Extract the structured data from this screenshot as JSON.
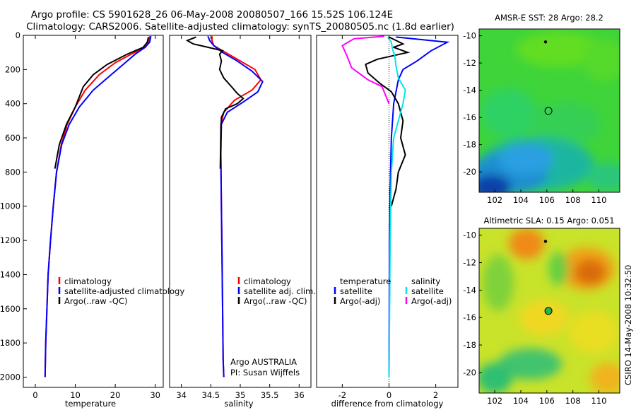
{
  "header": {
    "line1": "Argo profile: CS 5901628_26 06-May-2008 20080507_166 15.52S 106.124E",
    "line2": "Climatology: CARS2006. Satellite-adjusted climatology: synTS_20080505.nc (1.8d earlier)"
  },
  "footer_stamp": "CSIRO 14-May-2008 10:32:50",
  "colors": {
    "clim": "#ff0000",
    "sat": "#0000ff",
    "argo": "#000000",
    "sal_sat": "#00e5ee",
    "sal_argo": "#ff00ff"
  },
  "chart_data": [
    {
      "type": "line",
      "id": "temperature",
      "xlabel": "temperature",
      "xlim": [
        -3,
        32
      ],
      "ylim": [
        0,
        2060
      ],
      "xticks": [
        "0",
        "10",
        "20",
        "30"
      ],
      "yticks": [
        "0",
        "200",
        "400",
        "600",
        "800",
        "1000",
        "1200",
        "1400",
        "1600",
        "1800",
        "2000"
      ],
      "legend": [
        "climatology",
        "satellite-adjusted climatology",
        "Argo(..raw -QC)"
      ],
      "series": [
        {
          "name": "climatology",
          "color": "#ff0000",
          "x": [
            28.7,
            28.4,
            27.5,
            24,
            20,
            16,
            12.5,
            10,
            8,
            6.5,
            5.3,
            4.5,
            3.8,
            3.2,
            2.9,
            2.6,
            2.45
          ],
          "y": [
            5,
            40,
            70,
            110,
            160,
            230,
            320,
            420,
            520,
            640,
            800,
            1000,
            1200,
            1400,
            1600,
            1800,
            2000
          ]
        },
        {
          "name": "satellite-adjusted climatology",
          "color": "#0000ff",
          "x": [
            28.9,
            28.6,
            27.5,
            25,
            22,
            18.5,
            14.5,
            11,
            8.5,
            6.6,
            5.3,
            4.5,
            3.8,
            3.2,
            2.9,
            2.6,
            2.45
          ],
          "y": [
            5,
            40,
            70,
            110,
            170,
            240,
            320,
            420,
            520,
            640,
            800,
            1000,
            1200,
            1400,
            1600,
            1800,
            2000
          ]
        },
        {
          "name": "Argo(..raw -QC)",
          "color": "#000000",
          "x": [
            28.3,
            28,
            27,
            23,
            18,
            14.5,
            12,
            10,
            7.8,
            6,
            4.9
          ],
          "y": [
            10,
            40,
            70,
            110,
            170,
            230,
            300,
            420,
            520,
            640,
            780
          ]
        }
      ]
    },
    {
      "type": "line",
      "id": "salinity",
      "xlabel": "salinity",
      "xlim": [
        33.8,
        36.2
      ],
      "ylim": [
        0,
        2060
      ],
      "xticks": [
        "34",
        "34.5",
        "35",
        "35.5",
        "36"
      ],
      "legend": [
        "climatology",
        "satellite adj. clim.",
        "Argo(..raw -QC)"
      ],
      "annotation": [
        "Argo AUSTRALIA",
        "PI: Susan Wijffels"
      ],
      "series": [
        {
          "name": "climatology",
          "color": "#ff0000",
          "x": [
            34.52,
            34.52,
            34.55,
            34.75,
            35,
            35.25,
            35.35,
            35.2,
            34.9,
            34.72,
            34.67,
            34.67,
            34.68,
            34.69,
            34.7,
            34.71,
            34.72
          ],
          "y": [
            5,
            30,
            60,
            100,
            150,
            200,
            260,
            320,
            380,
            450,
            520,
            700,
            1000,
            1300,
            1600,
            1900,
            2000
          ]
        },
        {
          "name": "satellite adj. clim.",
          "color": "#0000ff",
          "x": [
            34.45,
            34.48,
            34.55,
            34.7,
            34.95,
            35.2,
            35.38,
            35.3,
            35.05,
            34.78,
            34.68,
            34.67,
            34.68,
            34.69,
            34.7,
            34.71,
            34.72
          ],
          "y": [
            5,
            30,
            60,
            100,
            150,
            210,
            270,
            330,
            390,
            450,
            520,
            700,
            1000,
            1300,
            1600,
            1900,
            2000
          ]
        },
        {
          "name": "Argo(..raw -QC)",
          "color": "#000000",
          "x": [
            34.25,
            34.1,
            34.2,
            34.45,
            34.7,
            34.65,
            34.68,
            34.65,
            34.72,
            34.85,
            34.95,
            35.05,
            34.95,
            34.75,
            34.68,
            34.67,
            34.66
          ],
          "y": [
            10,
            30,
            50,
            70,
            90,
            110,
            150,
            200,
            250,
            300,
            340,
            370,
            400,
            430,
            480,
            560,
            780
          ]
        }
      ]
    },
    {
      "type": "line",
      "id": "difference",
      "xlabel": "difference from climatology",
      "xlim": [
        -3.1,
        2.95
      ],
      "ylim": [
        0,
        2060
      ],
      "xticks": [
        "-2",
        "0",
        "2"
      ],
      "legend_temperature": {
        "title": "temperature",
        "items": [
          "satellite",
          "Argo(-adj)"
        ]
      },
      "legend_salinity": {
        "title": "salinity",
        "items": [
          "satellite",
          "Argo(-adj)"
        ]
      },
      "series": [
        {
          "name": "temperature satellite",
          "color": "#0000ff",
          "x": [
            0.3,
            2.5,
            1.8,
            1.2,
            0.6,
            0.4,
            0.2,
            0.1,
            0.05,
            0.02,
            0.01,
            0
          ],
          "y": [
            10,
            40,
            90,
            150,
            200,
            260,
            400,
            600,
            900,
            1200,
            1600,
            2000
          ]
        },
        {
          "name": "temperature Argo(-adj)",
          "color": "#000000",
          "x": [
            0,
            0.6,
            0.2,
            0.8,
            -0.5,
            -1,
            -0.9,
            -0.4,
            0.1,
            0.4,
            0.6,
            0.5,
            0.7,
            0.4,
            0.3,
            0.1
          ],
          "y": [
            10,
            50,
            70,
            100,
            140,
            170,
            220,
            280,
            330,
            400,
            500,
            600,
            700,
            800,
            900,
            1000
          ]
        },
        {
          "name": "salinity satellite",
          "color": "#00e5ee",
          "x": [
            -0.05,
            0.1,
            0.15,
            0.25,
            0.3,
            0.4,
            0.7,
            0.6,
            0.4,
            0.2,
            0.1,
            0.05,
            0
          ],
          "y": [
            10,
            40,
            80,
            120,
            180,
            250,
            320,
            400,
            500,
            600,
            800,
            1200,
            2000
          ]
        },
        {
          "name": "salinity Argo(-adj)",
          "color": "#ff00ff",
          "x": [
            -0.2,
            -1.5,
            -2,
            -1.8,
            -1.6,
            -0.9,
            -0.3,
            0
          ],
          "y": [
            5,
            20,
            60,
            120,
            190,
            260,
            300,
            400
          ]
        }
      ]
    },
    {
      "type": "heatmap",
      "id": "sst-map",
      "title": "AMSR-E SST: 28 Argo: 28.2",
      "xlim": [
        100.8,
        111.6
      ],
      "ylim": [
        -21.5,
        -9.5
      ],
      "xticks": [
        "102",
        "104",
        "106",
        "108",
        "110"
      ],
      "yticks": [
        "-10",
        "-12",
        "-14",
        "-16",
        "-18",
        "-20"
      ],
      "markers": [
        {
          "lon": 106.124,
          "lat": -15.52,
          "kind": "argo-open"
        },
        {
          "lon": 105.9,
          "lat": -10.45,
          "kind": "small"
        }
      ]
    },
    {
      "type": "heatmap",
      "id": "sla-map",
      "title": "Altimetric SLA: 0.15 Argo: 0.051",
      "xlim": [
        100.8,
        111.6
      ],
      "ylim": [
        -21.5,
        -9.5
      ],
      "xticks": [
        "102",
        "104",
        "106",
        "108",
        "110"
      ],
      "yticks": [
        "-10",
        "-12",
        "-14",
        "-16",
        "-18",
        "-20"
      ],
      "markers": [
        {
          "lon": 106.124,
          "lat": -15.52,
          "kind": "argo-filled"
        },
        {
          "lon": 105.9,
          "lat": -10.45,
          "kind": "small"
        }
      ]
    }
  ]
}
